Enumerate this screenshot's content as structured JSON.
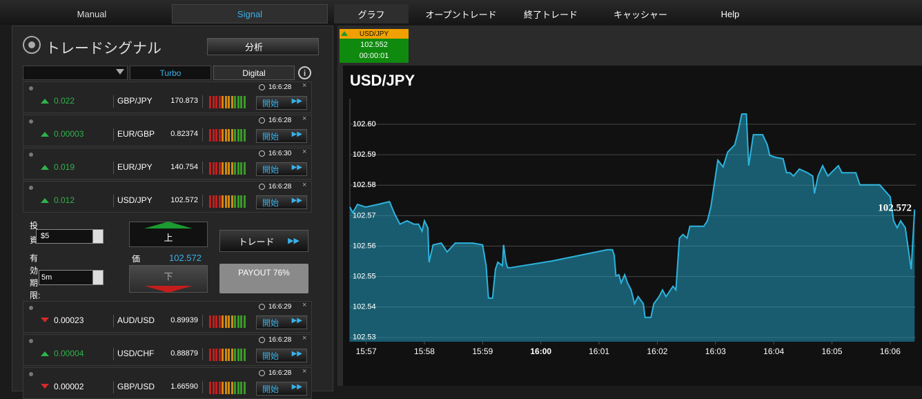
{
  "nav": {
    "left_tabs": [
      "Manual",
      "Signal"
    ],
    "right_tabs": [
      "グラフ",
      "オープントレード",
      "終了トレード",
      "キャッシャー",
      "Help"
    ]
  },
  "panel": {
    "title": "トレードシグナル",
    "analyze_button": "分析",
    "filter_tabs": [
      "Turbo",
      "Digital"
    ],
    "signals": [
      {
        "direction": "up",
        "change": "0.022",
        "pair": "GBP/JPY",
        "price": "170.873",
        "time": "16:6:28",
        "action": "開始"
      },
      {
        "direction": "up",
        "change": "0.00003",
        "pair": "EUR/GBP",
        "price": "0.82374",
        "time": "16:6:28",
        "action": "開始"
      },
      {
        "direction": "up",
        "change": "0.019",
        "pair": "EUR/JPY",
        "price": "140.754",
        "time": "16:6:30",
        "action": "開始"
      },
      {
        "direction": "up",
        "change": "0.012",
        "pair": "USD/JPY",
        "price": "102.572",
        "time": "16:6:28",
        "action": "開始",
        "expanded": true
      },
      {
        "direction": "down",
        "change": "0.00023",
        "pair": "AUD/USD",
        "price": "0.89939",
        "time": "16:6:29",
        "action": "開始"
      },
      {
        "direction": "up",
        "change": "0.00004",
        "pair": "USD/CHF",
        "price": "0.88879",
        "time": "16:6:28",
        "action": "開始"
      },
      {
        "direction": "down",
        "change": "0.00002",
        "pair": "GBP/USD",
        "price": "1.66590",
        "time": "16:6:28",
        "action": "開始"
      }
    ],
    "trade_form": {
      "invest_label": "投資:",
      "invest_value": "$5",
      "expiry_label": "有効期限:",
      "expiry_value": "5m",
      "up_button": "上",
      "price_label": "価",
      "price": "102.572",
      "down_button": "下",
      "trade_button": "トレード",
      "payout": "PAYOUT 76%"
    }
  },
  "ticker": {
    "pair": "USD/JPY",
    "price": "102.552",
    "timer": "00:00:01"
  },
  "chart_data": {
    "type": "line",
    "title": "USD/JPY",
    "annotation": "102.572",
    "color": "#2db3dd",
    "fill": "#1b6a80",
    "grid": true,
    "xlim": [
      956.72,
      966.44
    ],
    "xticks": [
      {
        "value": 957,
        "label": "15:57"
      },
      {
        "value": 958,
        "label": "15:58"
      },
      {
        "value": 959,
        "label": "15:59"
      },
      {
        "value": 960,
        "label": "16:00"
      },
      {
        "value": 961,
        "label": "16:01"
      },
      {
        "value": 962,
        "label": "16:02"
      },
      {
        "value": 963,
        "label": "16:03"
      },
      {
        "value": 964,
        "label": "16:04"
      },
      {
        "value": 965,
        "label": "16:05"
      },
      {
        "value": 966,
        "label": "16:06"
      }
    ],
    "ylim": [
      102.5286,
      102.6084
    ],
    "yticks": [
      102.53,
      102.54,
      102.55,
      102.56,
      102.57,
      102.58,
      102.59,
      {
        "value": 102.6,
        "label": "102.60"
      }
    ],
    "x": [
      956.72,
      956.77,
      956.85,
      956.99,
      957.2,
      957.4,
      957.49,
      957.58,
      957.7,
      957.82,
      957.9,
      957.96,
      958.0,
      958.06,
      958.08,
      958.15,
      958.29,
      958.39,
      958.53,
      958.83,
      959.0,
      959.06,
      959.1,
      959.17,
      959.22,
      959.26,
      959.34,
      959.36,
      959.4,
      959.43,
      959.48,
      960.19,
      961.14,
      961.23,
      961.26,
      961.29,
      961.34,
      961.38,
      961.44,
      961.49,
      961.55,
      961.61,
      961.67,
      961.76,
      961.79,
      961.89,
      961.94,
      962.03,
      962.09,
      962.15,
      962.27,
      962.32,
      962.38,
      962.44,
      962.51,
      962.56,
      962.8,
      962.86,
      962.92,
      963.04,
      963.13,
      963.21,
      963.33,
      963.39,
      963.45,
      963.53,
      963.57,
      963.65,
      963.81,
      963.89,
      963.93,
      964.04,
      964.16,
      964.22,
      964.28,
      964.34,
      964.44,
      964.58,
      964.67,
      964.7,
      964.76,
      964.84,
      964.93,
      965.05,
      965.11,
      965.17,
      965.41,
      965.48,
      965.82,
      966.0,
      966.06,
      966.12,
      966.18,
      966.26,
      966.36,
      966.42
    ],
    "values": [
      102.5728,
      102.571,
      102.5737,
      102.5728,
      102.5737,
      102.5746,
      102.5705,
      102.5672,
      102.5683,
      102.5672,
      102.5672,
      102.5649,
      102.5683,
      102.566,
      102.5547,
      102.5604,
      102.561,
      102.5581,
      102.561,
      102.561,
      102.5604,
      102.5536,
      102.5429,
      102.5429,
      102.5524,
      102.5547,
      102.5536,
      102.5604,
      102.5547,
      102.5529,
      102.5529,
      102.5551,
      102.5588,
      102.5588,
      102.557,
      102.5502,
      102.5506,
      102.5479,
      102.5506,
      102.5479,
      102.5456,
      102.5411,
      102.5434,
      102.5411,
      102.5366,
      102.5366,
      102.5411,
      102.5434,
      102.5456,
      102.5434,
      102.5468,
      102.5456,
      102.5626,
      102.5638,
      102.5626,
      102.5665,
      102.5665,
      102.5683,
      102.5728,
      102.5882,
      102.586,
      102.5909,
      102.5932,
      102.5977,
      102.6034,
      102.6034,
      102.5864,
      102.5966,
      102.5966,
      102.5932,
      102.5898,
      102.5891,
      102.5887,
      102.5841,
      102.5841,
      102.583,
      102.5853,
      102.5841,
      102.583,
      102.5773,
      102.583,
      102.5864,
      102.583,
      102.5853,
      102.5864,
      102.5841,
      102.5841,
      102.5801,
      102.5801,
      102.5762,
      102.5683,
      102.566,
      102.5683,
      102.566,
      102.5524,
      102.572
    ]
  }
}
